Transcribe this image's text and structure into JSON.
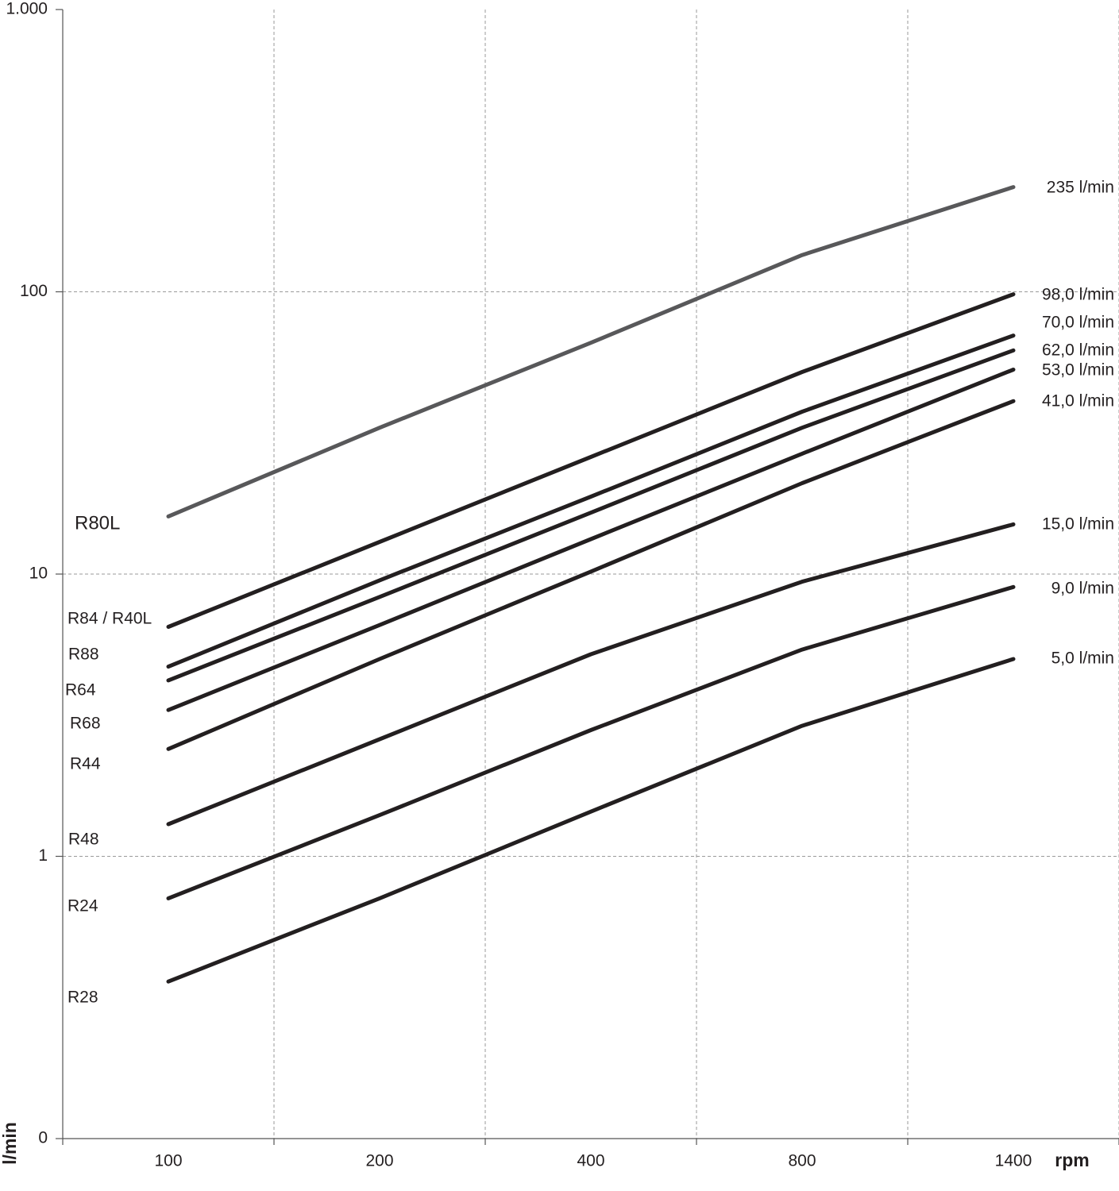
{
  "chart_data": {
    "type": "line",
    "x_label": "rpm",
    "y_label": "l/min",
    "categories": [
      "100",
      "200",
      "400",
      "800",
      "1400"
    ],
    "log_y": true,
    "grid": true,
    "ylim": [
      0.1,
      1000
    ],
    "yticks": [
      {
        "value": 0.1,
        "label": "0"
      },
      1,
      10,
      100,
      {
        "value": 1000,
        "label": "1.000"
      }
    ],
    "series": [
      {
        "name": "R80L",
        "color": "#58585a",
        "values": [
          16,
          33,
          66,
          135,
          235
        ],
        "value_labels": [
          null,
          null,
          null,
          null,
          "235 l/min"
        ]
      },
      {
        "name": "R84 / R40L",
        "color": "#231f20",
        "values": [
          6.5,
          13,
          26,
          52,
          98
        ],
        "value_labels": [
          null,
          null,
          null,
          null,
          "98,0 l/min"
        ]
      },
      {
        "name": "R88",
        "color": "#231f20",
        "values": [
          4.7,
          9.5,
          18.8,
          37.6,
          70
        ],
        "value_labels": [
          null,
          null,
          null,
          null,
          "70,0 l/min"
        ]
      },
      {
        "name": "R64",
        "color": "#231f20",
        "values": [
          4.2,
          8.3,
          16.5,
          33,
          62
        ],
        "value_labels": [
          null,
          null,
          null,
          null,
          "62,0 l/min"
        ]
      },
      {
        "name": "R68",
        "color": "#231f20",
        "values": [
          3.3,
          6.6,
          13.3,
          26.7,
          53
        ],
        "value_labels": [
          null,
          null,
          null,
          null,
          "53,0 l/min"
        ]
      },
      {
        "name": "R44",
        "color": "#231f20",
        "values": [
          2.4,
          5.0,
          10.2,
          21,
          41
        ],
        "value_labels": [
          null,
          null,
          null,
          null,
          "41,0 l/min"
        ]
      },
      {
        "name": "R48",
        "color": "#231f20",
        "values": [
          1.3,
          2.6,
          5.2,
          9.4,
          15
        ],
        "value_labels": [
          null,
          null,
          null,
          null,
          "15,0 l/min"
        ]
      },
      {
        "name": "R24",
        "color": "#231f20",
        "values": [
          0.71,
          1.4,
          2.8,
          5.4,
          9
        ],
        "value_labels": [
          null,
          null,
          null,
          null,
          "9,0 l/min"
        ]
      },
      {
        "name": "R28",
        "color": "#231f20",
        "values": [
          0.36,
          0.71,
          1.44,
          2.9,
          5
        ],
        "value_labels": [
          null,
          null,
          null,
          null,
          "5,0 l/min"
        ]
      }
    ]
  }
}
